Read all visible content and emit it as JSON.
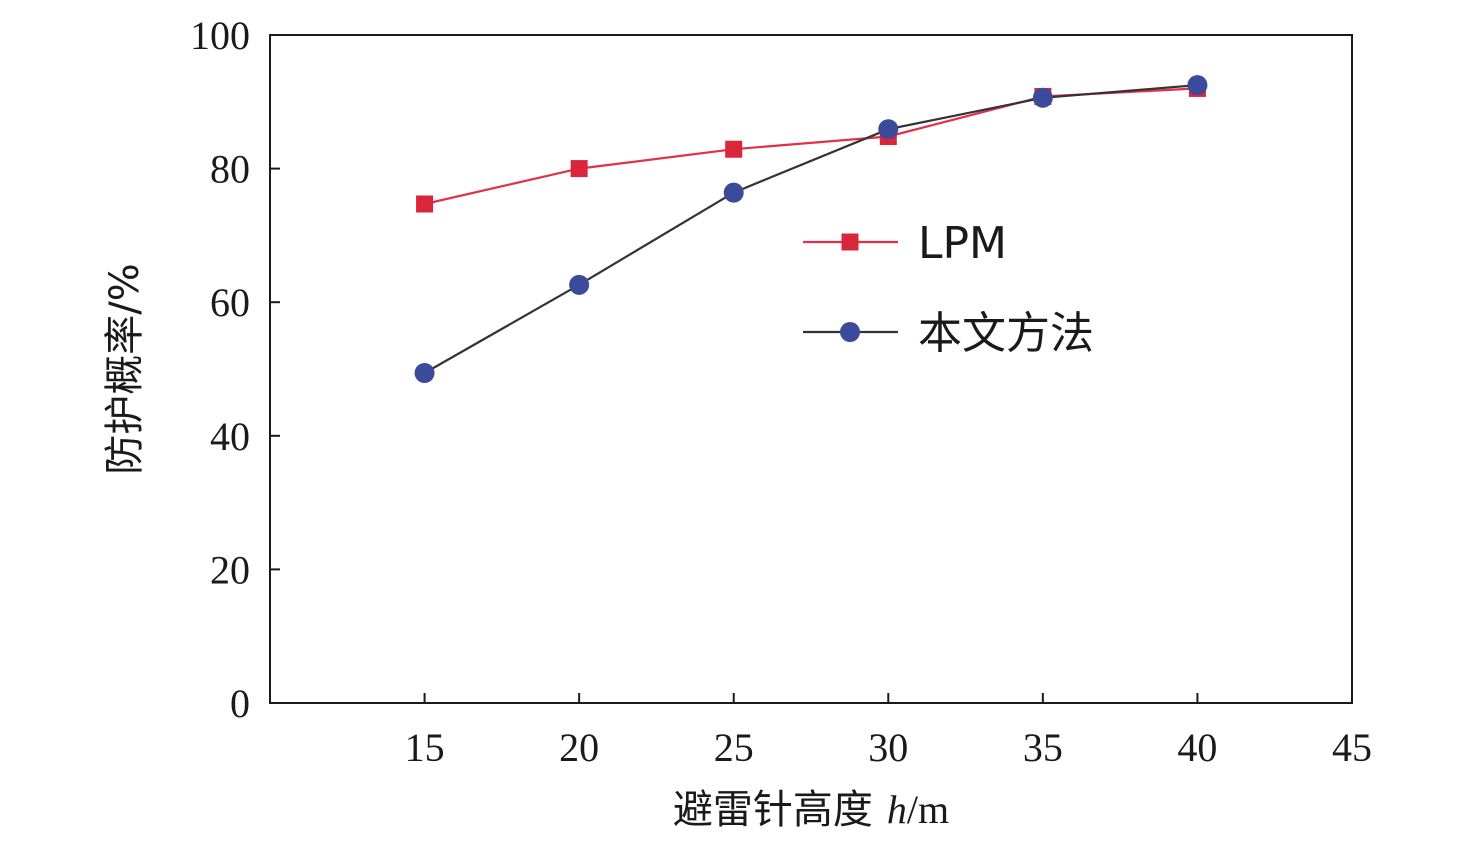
{
  "chart_data": {
    "type": "line",
    "x": [
      15,
      20,
      25,
      30,
      35,
      40
    ],
    "series": [
      {
        "name": "LPM",
        "values": [
          74.7,
          80.0,
          82.9,
          84.8,
          90.8,
          92.0
        ],
        "color": "#d9263a",
        "line_color": "#e0304a",
        "marker": "square"
      },
      {
        "name": "本文方法",
        "values": [
          49.4,
          62.6,
          76.4,
          85.9,
          90.6,
          92.5
        ],
        "color": "#3b4a9a",
        "line_color": "#333333",
        "marker": "circle"
      }
    ],
    "xlim": [
      10,
      45
    ],
    "ylim": [
      0,
      100
    ],
    "xticks": [
      "15",
      "20",
      "25",
      "30",
      "35",
      "40",
      "45"
    ],
    "yticks": [
      "0",
      "20",
      "40",
      "60",
      "80",
      "100"
    ],
    "xlabel": {
      "text": "避雷针高度",
      "var": "h",
      "unit": "/m"
    },
    "ylabel": "防护概率/%",
    "legend_position": "center-right",
    "grid": false
  }
}
